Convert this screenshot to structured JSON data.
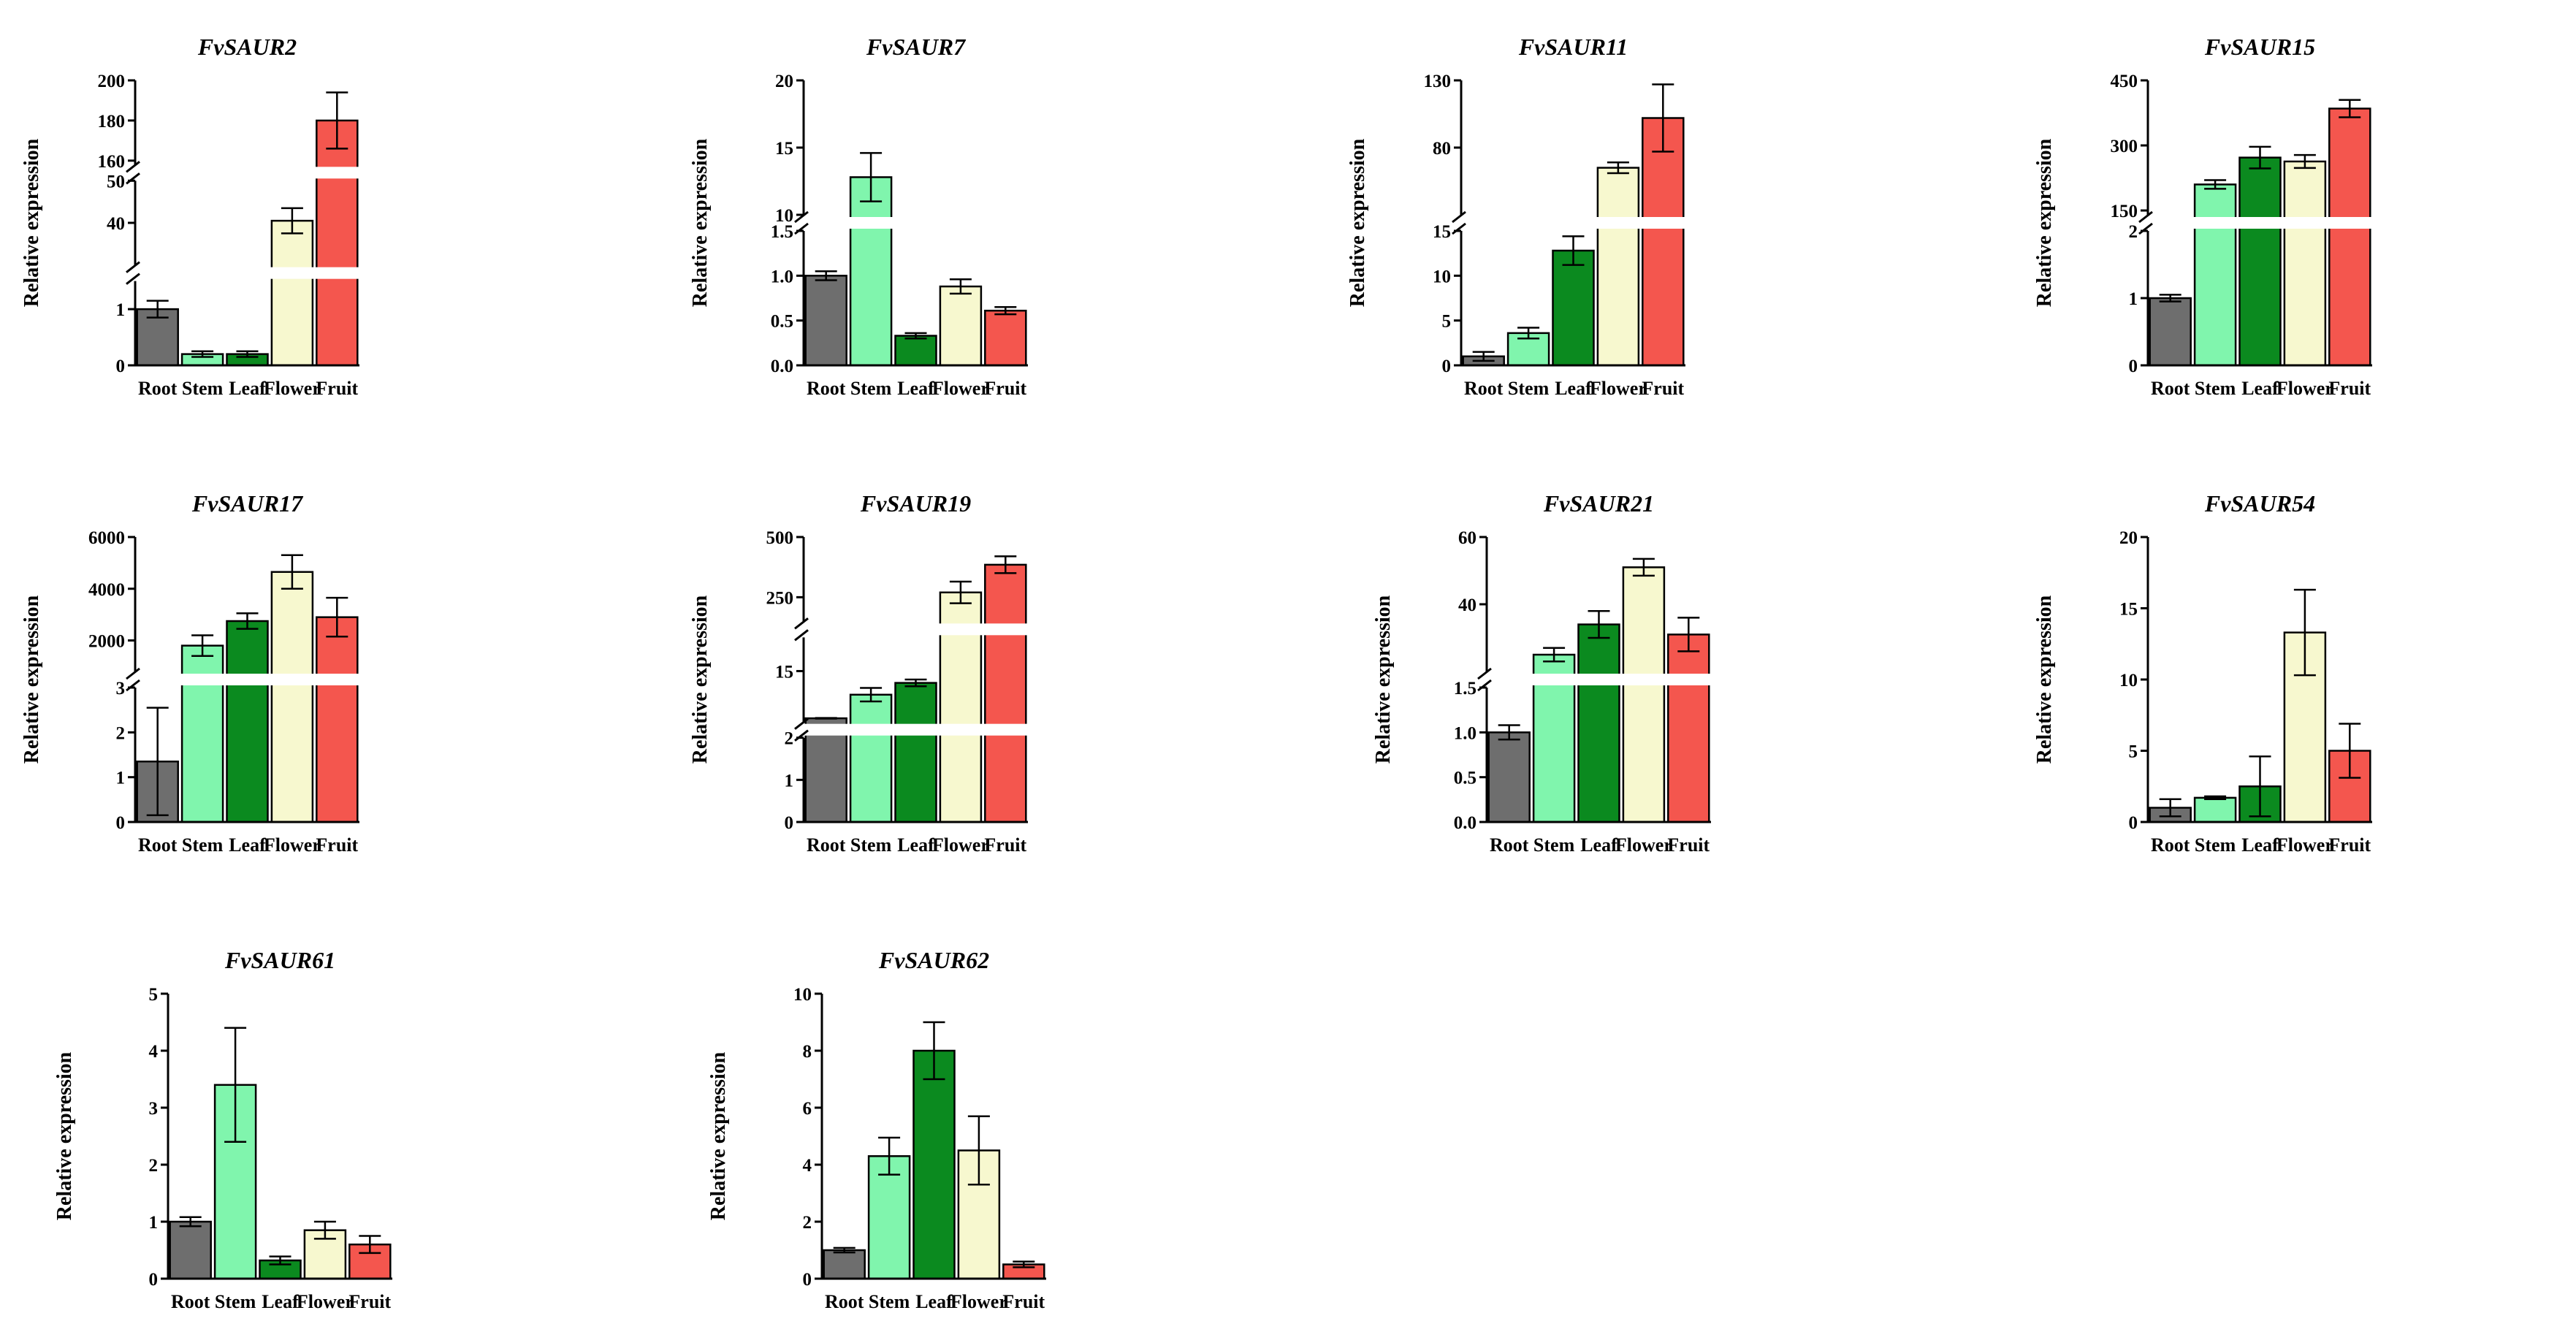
{
  "colors": {
    "Root": "#6e6e6e",
    "Stem": "#80f5ad",
    "Leaf": "#0b8a1f",
    "Flower": "#f7f8cf",
    "Fruit": "#f4564e",
    "axis": "#000000"
  },
  "chart_data": [
    {
      "type": "bar",
      "title": "FvSAUR2",
      "ylabel": "Relative expression",
      "categories": [
        "Root",
        "Stem",
        "Leaf",
        "Flower",
        "Fruit"
      ],
      "values": [
        1.0,
        0.2,
        0.2,
        40.5,
        180
      ],
      "errors": [
        0.15,
        0.05,
        0.05,
        3.0,
        14
      ],
      "segments": [
        {
          "range": [
            0,
            1.5
          ],
          "ticks": [
            {
              "v": 0,
              "t": "0"
            },
            {
              "v": 1,
              "t": "1"
            }
          ]
        },
        {
          "range": [
            30,
            50
          ],
          "ticks": [
            {
              "v": 40,
              "t": "40"
            },
            {
              "v": 50,
              "t": "50"
            }
          ]
        },
        {
          "range": [
            158,
            200
          ],
          "ticks": [
            {
              "v": 160,
              "t": "160"
            },
            {
              "v": 180,
              "t": "180"
            },
            {
              "v": 200,
              "t": "200"
            }
          ]
        }
      ]
    },
    {
      "type": "bar",
      "title": "FvSAUR7",
      "ylabel": "Relative expression",
      "categories": [
        "Root",
        "Stem",
        "Leaf",
        "Flower",
        "Fruit"
      ],
      "values": [
        1.0,
        12.8,
        0.33,
        0.88,
        0.61
      ],
      "errors": [
        0.05,
        1.8,
        0.03,
        0.08,
        0.04
      ],
      "segments": [
        {
          "range": [
            0,
            1.5
          ],
          "ticks": [
            {
              "v": 0,
              "t": "0.0"
            },
            {
              "v": 0.5,
              "t": "0.5"
            },
            {
              "v": 1,
              "t": "1.0"
            },
            {
              "v": 1.5,
              "t": "1.5"
            }
          ]
        },
        {
          "range": [
            10,
            20
          ],
          "ticks": [
            {
              "v": 10,
              "t": "10"
            },
            {
              "v": 15,
              "t": "15"
            },
            {
              "v": 20,
              "t": "20"
            }
          ]
        }
      ]
    },
    {
      "type": "bar",
      "title": "FvSAUR11",
      "ylabel": "Relative expression",
      "categories": [
        "Root",
        "Stem",
        "Leaf",
        "Flower",
        "Fruit"
      ],
      "values": [
        1.0,
        3.6,
        12.8,
        65,
        102
      ],
      "errors": [
        0.5,
        0.6,
        1.6,
        4,
        25
      ],
      "segments": [
        {
          "range": [
            0,
            15
          ],
          "ticks": [
            {
              "v": 0,
              "t": "0"
            },
            {
              "v": 5,
              "t": "5"
            },
            {
              "v": 10,
              "t": "10"
            },
            {
              "v": 15,
              "t": "15"
            }
          ]
        },
        {
          "range": [
            30,
            130
          ],
          "ticks": [
            {
              "v": 80,
              "t": "80"
            },
            {
              "v": 130,
              "t": "130"
            }
          ]
        }
      ]
    },
    {
      "type": "bar",
      "title": "FvSAUR15",
      "ylabel": "Relative expression",
      "categories": [
        "Root",
        "Stem",
        "Leaf",
        "Flower",
        "Fruit"
      ],
      "values": [
        1.0,
        210,
        272,
        263,
        385
      ],
      "errors": [
        0.05,
        10,
        25,
        15,
        20
      ],
      "segments": [
        {
          "range": [
            0,
            2
          ],
          "ticks": [
            {
              "v": 0,
              "t": "0"
            },
            {
              "v": 1,
              "t": "1"
            },
            {
              "v": 2,
              "t": "2"
            }
          ]
        },
        {
          "range": [
            140,
            450
          ],
          "ticks": [
            {
              "v": 150,
              "t": "150"
            },
            {
              "v": 300,
              "t": "300"
            },
            {
              "v": 450,
              "t": "450"
            }
          ]
        }
      ]
    },
    {
      "type": "bar",
      "title": "FvSAUR17",
      "ylabel": "Relative expression",
      "categories": [
        "Root",
        "Stem",
        "Leaf",
        "Flower",
        "Fruit"
      ],
      "values": [
        1.35,
        1800,
        2750,
        4650,
        2900
      ],
      "errors": [
        1.2,
        400,
        300,
        650,
        750
      ],
      "segments": [
        {
          "range": [
            0,
            3
          ],
          "ticks": [
            {
              "v": 0,
              "t": "0"
            },
            {
              "v": 1,
              "t": "1"
            },
            {
              "v": 2,
              "t": "2"
            },
            {
              "v": 3,
              "t": "3"
            }
          ]
        },
        {
          "range": [
            800,
            6000
          ],
          "ticks": [
            {
              "v": 2000,
              "t": "2000"
            },
            {
              "v": 4000,
              "t": "4000"
            },
            {
              "v": 6000,
              "t": "6000"
            }
          ]
        }
      ]
    },
    {
      "type": "bar",
      "title": "FvSAUR19",
      "ylabel": "Relative expression",
      "categories": [
        "Root",
        "Stem",
        "Leaf",
        "Flower",
        "Fruit"
      ],
      "values": [
        1.0,
        8,
        11.5,
        270,
        385
      ],
      "errors": [
        0.1,
        2,
        1,
        45,
        35
      ],
      "segments": [
        {
          "range": [
            0,
            2
          ],
          "ticks": [
            {
              "v": 0,
              "t": "0"
            },
            {
              "v": 1,
              "t": "1"
            },
            {
              "v": 2,
              "t": "2"
            }
          ]
        },
        {
          "range": [
            0,
            25
          ],
          "ticks": [
            {
              "v": 15,
              "t": "15"
            }
          ]
        },
        {
          "range": [
            150,
            500
          ],
          "ticks": [
            {
              "v": 250,
              "t": "250"
            },
            {
              "v": 500,
              "t": "500"
            }
          ]
        }
      ]
    },
    {
      "type": "bar",
      "title": "FvSAUR21",
      "ylabel": "Relative expression",
      "categories": [
        "Root",
        "Stem",
        "Leaf",
        "Flower",
        "Fruit"
      ],
      "values": [
        1.0,
        25,
        34,
        51,
        31
      ],
      "errors": [
        0.08,
        2,
        4,
        2.5,
        5
      ],
      "segments": [
        {
          "range": [
            0,
            1.5
          ],
          "ticks": [
            {
              "v": 0,
              "t": "0.0"
            },
            {
              "v": 0.5,
              "t": "0.5"
            },
            {
              "v": 1,
              "t": "1.0"
            },
            {
              "v": 1.5,
              "t": "1.5"
            }
          ]
        },
        {
          "range": [
            20,
            60
          ],
          "ticks": [
            {
              "v": 40,
              "t": "40"
            },
            {
              "v": 60,
              "t": "60"
            }
          ]
        }
      ]
    },
    {
      "type": "bar",
      "title": "FvSAUR54",
      "ylabel": "Relative expression",
      "categories": [
        "Root",
        "Stem",
        "Leaf",
        "Flower",
        "Fruit"
      ],
      "values": [
        1.0,
        1.7,
        2.5,
        13.3,
        5.0
      ],
      "errors": [
        0.6,
        0.1,
        2.1,
        3.0,
        1.9
      ],
      "ylim": [
        0,
        20
      ],
      "yticks": [
        0,
        5,
        10,
        15,
        20
      ]
    },
    {
      "type": "bar",
      "title": "FvSAUR61",
      "ylabel": "Relative expression",
      "categories": [
        "Root",
        "Stem",
        "Leaf",
        "Flower",
        "Fruit"
      ],
      "values": [
        1.0,
        3.4,
        0.32,
        0.85,
        0.6
      ],
      "errors": [
        0.08,
        1.0,
        0.07,
        0.15,
        0.15
      ],
      "ylim": [
        0,
        5
      ],
      "yticks": [
        0,
        1,
        2,
        3,
        4,
        5
      ]
    },
    {
      "type": "bar",
      "title": "FvSAUR62",
      "ylabel": "Relative expression",
      "categories": [
        "Root",
        "Stem",
        "Leaf",
        "Flower",
        "Fruit"
      ],
      "values": [
        1.0,
        4.3,
        8.0,
        4.5,
        0.5
      ],
      "errors": [
        0.08,
        0.65,
        1.0,
        1.2,
        0.1
      ],
      "ylim": [
        0,
        10
      ],
      "yticks": [
        0,
        2,
        4,
        6,
        8,
        10
      ]
    }
  ]
}
